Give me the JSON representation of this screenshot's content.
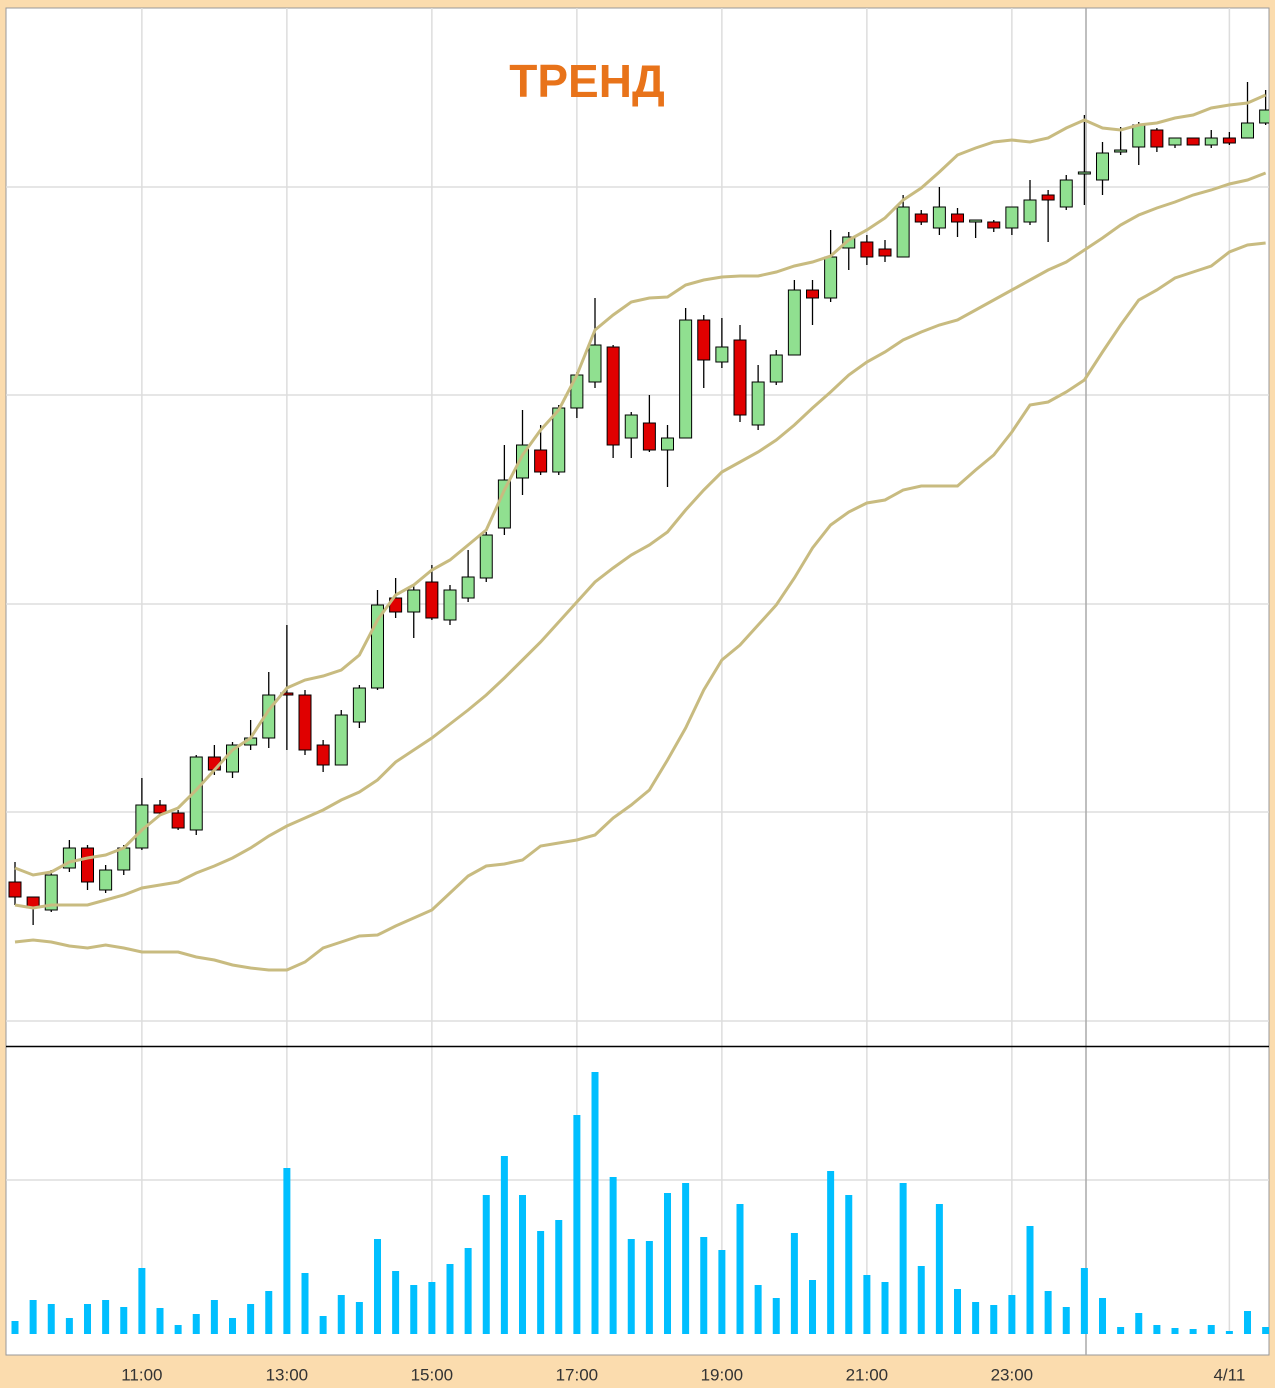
{
  "chart_data": [
    {
      "type": "candlestick",
      "title": "ТРЕНД",
      "up_color": "#90e090",
      "down_color": "#e00000",
      "open": [
        164,
        149,
        136,
        178,
        198,
        156,
        176,
        198,
        241,
        233,
        216,
        289,
        274,
        301,
        308,
        353,
        351,
        301,
        281,
        324,
        358,
        448,
        434,
        464,
        426,
        448,
        468,
        518,
        568,
        596,
        574,
        638,
        664,
        699,
        608,
        623,
        596,
        608,
        726,
        684,
        706,
        621,
        664,
        691,
        756,
        748,
        798,
        804,
        797,
        789,
        832,
        818,
        832,
        824,
        824,
        818,
        824,
        851,
        839,
        872,
        866,
        894,
        899,
        916,
        901,
        908,
        901,
        908,
        908,
        923
      ],
      "high": [
        184,
        149,
        176,
        206,
        201,
        181,
        201,
        268,
        246,
        236,
        291,
        301,
        304,
        326,
        374,
        421,
        356,
        306,
        336,
        361,
        456,
        468,
        461,
        481,
        461,
        496,
        514,
        601,
        636,
        621,
        641,
        674,
        748,
        701,
        634,
        651,
        621,
        738,
        731,
        728,
        721,
        681,
        696,
        766,
        766,
        816,
        814,
        811,
        806,
        851,
        836,
        859,
        838,
        826,
        826,
        839,
        866,
        856,
        871,
        931,
        904,
        919,
        924,
        918,
        908,
        908,
        916,
        914,
        964,
        956
      ],
      "low": [
        141,
        121,
        134,
        174,
        156,
        153,
        171,
        196,
        231,
        216,
        211,
        271,
        268,
        296,
        298,
        296,
        291,
        274,
        281,
        318,
        356,
        428,
        408,
        426,
        421,
        444,
        464,
        511,
        551,
        571,
        571,
        628,
        658,
        588,
        588,
        594,
        559,
        608,
        658,
        678,
        624,
        616,
        661,
        691,
        721,
        744,
        776,
        781,
        784,
        789,
        821,
        811,
        809,
        808,
        814,
        811,
        821,
        804,
        836,
        841,
        851,
        891,
        881,
        894,
        898,
        901,
        898,
        901,
        908,
        921
      ],
      "close": [
        149,
        138,
        171,
        198,
        164,
        176,
        198,
        241,
        233,
        218,
        289,
        276,
        301,
        308,
        351,
        351,
        296,
        281,
        331,
        358,
        441,
        434,
        456,
        428,
        456,
        469,
        511,
        566,
        601,
        574,
        638,
        671,
        701,
        601,
        631,
        596,
        608,
        726,
        686,
        699,
        631,
        664,
        691,
        756,
        748,
        789,
        809,
        789,
        790,
        839,
        824,
        839,
        824,
        826,
        818,
        839,
        846,
        846,
        866,
        874,
        893,
        896,
        921,
        899,
        908,
        901,
        908,
        903,
        923,
        936
      ],
      "overlays": [
        {
          "color": "#c8bb80",
          "values": [
            178,
            171,
            174,
            184,
            188,
            191,
            198,
            216,
            231,
            238,
            256,
            276,
            296,
            308,
            336,
            358,
            366,
            370,
            376,
            391,
            426,
            451,
            461,
            476,
            486,
            501,
            516,
            556,
            591,
            616,
            636,
            671,
            716,
            731,
            744,
            748,
            749,
            761,
            766,
            769,
            770,
            770,
            774,
            780,
            784,
            790,
            806,
            816,
            828,
            846,
            858,
            874,
            891,
            898,
            904,
            906,
            904,
            908,
            918,
            926,
            918,
            916,
            921,
            923,
            928,
            931,
            938,
            941,
            943,
            951
          ]
        },
        {
          "color": "#c8bb80",
          "values": [
            141,
            138,
            141,
            141,
            141,
            146,
            151,
            158,
            161,
            164,
            173,
            180,
            188,
            198,
            210,
            220,
            228,
            236,
            246,
            254,
            266,
            284,
            296,
            308,
            322,
            336,
            351,
            368,
            386,
            404,
            424,
            444,
            464,
            478,
            491,
            501,
            514,
            536,
            556,
            574,
            584,
            594,
            606,
            621,
            638,
            654,
            671,
            684,
            694,
            706,
            714,
            721,
            726,
            736,
            746,
            756,
            766,
            776,
            784,
            796,
            808,
            821,
            831,
            838,
            844,
            851,
            856,
            862,
            866,
            873
          ]
        },
        {
          "color": "#c8bb80",
          "values": [
            104,
            106,
            104,
            100,
            98,
            101,
            98,
            94,
            94,
            94,
            89,
            86,
            81,
            78,
            76,
            76,
            84,
            98,
            104,
            110,
            111,
            120,
            128,
            136,
            153,
            170,
            180,
            182,
            186,
            200,
            203,
            206,
            211,
            228,
            241,
            256,
            286,
            318,
            356,
            386,
            401,
            421,
            441,
            468,
            498,
            521,
            534,
            543,
            546,
            556,
            560,
            560,
            560,
            576,
            591,
            614,
            641,
            644,
            654,
            666,
            694,
            721,
            746,
            756,
            768,
            774,
            780,
            794,
            801,
            803
          ]
        }
      ],
      "ylim": [
        0,
        1038
      ],
      "yticks": [
        25,
        234,
        442,
        651,
        859
      ],
      "grid": true
    },
    {
      "type": "bar",
      "color": "#00bfff",
      "categories": [
        null,
        null,
        null,
        null,
        null,
        null,
        null,
        "11:00",
        null,
        null,
        null,
        null,
        null,
        null,
        null,
        "13:00",
        null,
        null,
        null,
        null,
        null,
        null,
        null,
        "15:00",
        null,
        null,
        null,
        null,
        null,
        null,
        null,
        "17:00",
        null,
        null,
        null,
        null,
        null,
        null,
        null,
        "19:00",
        null,
        null,
        null,
        null,
        null,
        null,
        null,
        "21:00",
        null,
        null,
        null,
        null,
        null,
        null,
        null,
        "23:00",
        null,
        null,
        null,
        null,
        null,
        null,
        null,
        null,
        null,
        null,
        null,
        "4/11",
        null,
        null
      ],
      "values": [
        13,
        34,
        30,
        16,
        30,
        34,
        27,
        66,
        26,
        9,
        20,
        34,
        16,
        30,
        43,
        166,
        61,
        18,
        39,
        32,
        95,
        63,
        49,
        52,
        70,
        86,
        139,
        178,
        139,
        103,
        114,
        219,
        262,
        157,
        95,
        93,
        141,
        151,
        97,
        84,
        130,
        49,
        36,
        101,
        54,
        163,
        139,
        59,
        52,
        151,
        68,
        130,
        45,
        32,
        29,
        39,
        108,
        43,
        27,
        66,
        36,
        7,
        21,
        9,
        6,
        5,
        9,
        3,
        23,
        7
      ],
      "ylim": [
        0,
        288
      ],
      "yticks": [
        154
      ],
      "grid": true
    }
  ]
}
